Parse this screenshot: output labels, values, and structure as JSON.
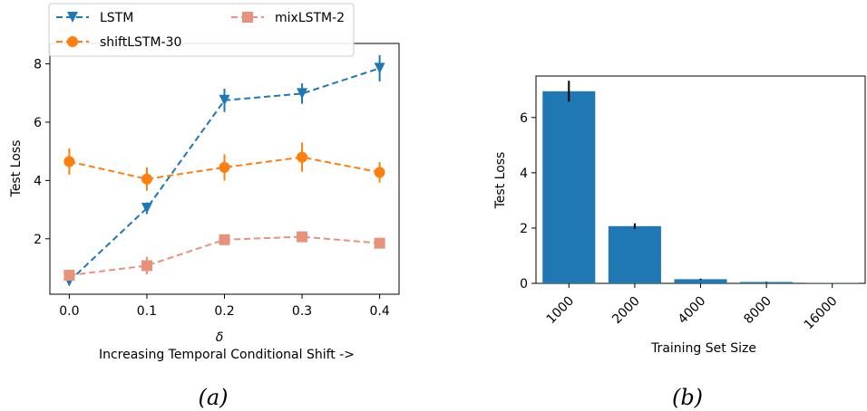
{
  "chart_data": [
    {
      "type": "line",
      "panel_label": "(a)",
      "xlabel": "δ",
      "xlabel2": "Increasing Temporal Conditional Shift ->",
      "ylabel": "Test Loss",
      "x": [
        0.0,
        0.1,
        0.2,
        0.3,
        0.4
      ],
      "x_tick_labels": [
        "0.0",
        "0.1",
        "0.2",
        "0.3",
        "0.4"
      ],
      "y_ticks": [
        2,
        4,
        6,
        8
      ],
      "xlim": [
        -0.025,
        0.425
      ],
      "ylim": [
        0.1,
        8.7
      ],
      "grid": false,
      "legend_position": "top (overlapping upper-left of axes)",
      "series": [
        {
          "name": "LSTM",
          "color": "#1f77b4",
          "marker": "triangle-down",
          "values": [
            0.55,
            3.05,
            6.75,
            6.98,
            7.85
          ],
          "errors": [
            0.15,
            0.2,
            0.4,
            0.35,
            0.45
          ]
        },
        {
          "name": "shiftLSTM-30",
          "color": "#ff7f0e",
          "marker": "circle",
          "values": [
            4.65,
            4.05,
            4.45,
            4.8,
            4.28
          ],
          "errors": [
            0.45,
            0.4,
            0.45,
            0.5,
            0.35
          ]
        },
        {
          "name": "mixLSTM-2",
          "color": "#e8927c",
          "marker": "square",
          "values": [
            0.75,
            1.08,
            1.97,
            2.07,
            1.85
          ],
          "errors": [
            0.1,
            0.3,
            0.15,
            0.12,
            0.1
          ]
        }
      ]
    },
    {
      "type": "bar",
      "panel_label": "(b)",
      "xlabel": "Training Set Size",
      "ylabel": "Test Loss",
      "categories": [
        "1000",
        "2000",
        "4000",
        "8000",
        "16000"
      ],
      "values": [
        6.95,
        2.07,
        0.15,
        0.05,
        0.01
      ],
      "errors": [
        0.38,
        0.1,
        0.02,
        0.01,
        0.0
      ],
      "y_ticks": [
        0,
        2,
        4,
        6
      ],
      "ylim": [
        0,
        7.5
      ],
      "color": "#1f77b4",
      "grid": false
    }
  ]
}
